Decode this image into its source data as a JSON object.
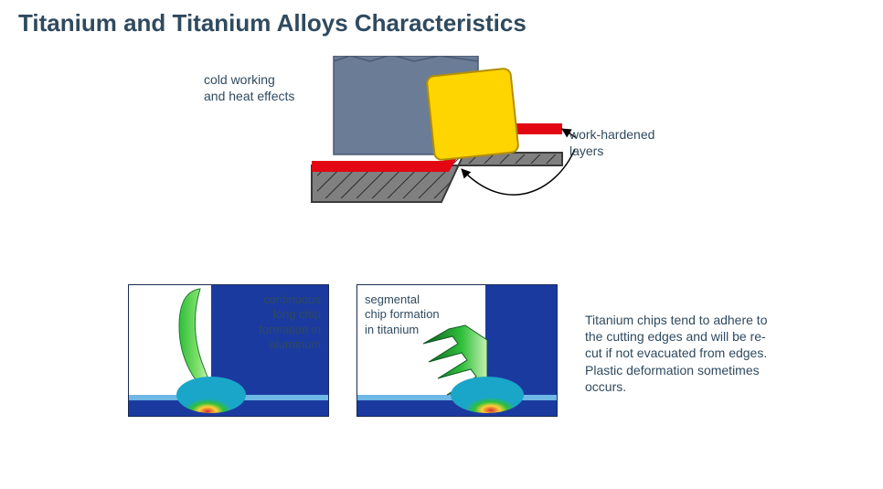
{
  "title": "Titanium and Titanium Alloys Characteristics",
  "topDiagram": {
    "label_cold": "cold working\nand heat effects",
    "label_hardened": "work-hardened\nlayers",
    "colors": {
      "chip": "#6b7c97",
      "tool": "#ffd500",
      "toolStroke": "#b38f00",
      "redLayer": "#e30613",
      "workpiece": "#808080",
      "workpieceStroke": "#3a3a3a",
      "hatch": "#2b2b2b"
    }
  },
  "panels": {
    "aluminum": {
      "label": "continuous\nlong chip\nformation in\naluminum",
      "bg": "#1b3aa0",
      "gradient": [
        "#d7322b",
        "#ffcf3a",
        "#2fbf3a",
        "#1aa6c9",
        "#ffffff"
      ]
    },
    "titanium": {
      "label": "segmental\nchip formation\nin titanium",
      "bg": "#1b3aa0",
      "gradient": [
        "#d7322b",
        "#ffcf3a",
        "#2fbf3a",
        "#1aa6c9",
        "#ffffff"
      ]
    }
  },
  "sideText": "Titanium chips tend to adhere to the cutting edges and will be re-cut if not evacuated from edges. Plastic deformation sometimes occurs."
}
